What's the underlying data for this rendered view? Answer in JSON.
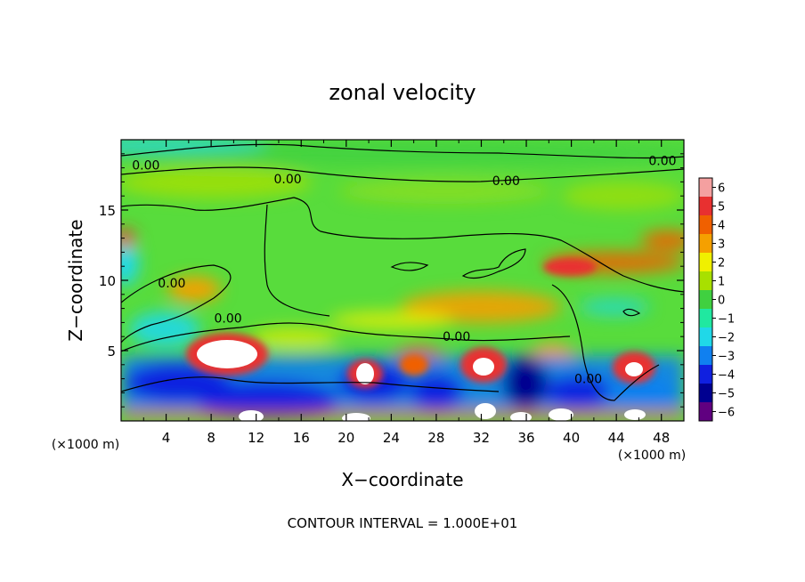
{
  "chart_data": {
    "type": "heatmap",
    "title": "zonal velocity",
    "xlabel": "X−coordinate",
    "ylabel": "Z−coordinate",
    "x_unit_left": "(×1000 m)",
    "x_unit_right": "(×1000 m)",
    "footer": "CONTOUR INTERVAL = 1.000E+01",
    "xlim": [
      0,
      50
    ],
    "ylim": [
      0,
      20
    ],
    "x_ticks": [
      4,
      8,
      12,
      16,
      20,
      24,
      28,
      32,
      36,
      40,
      44,
      48
    ],
    "x_tick_labels": [
      "4",
      "8",
      "12",
      "16",
      "20",
      "24",
      "28",
      "32",
      "36",
      "40",
      "44",
      "48"
    ],
    "y_ticks": [
      5,
      10,
      15
    ],
    "y_tick_labels": [
      "5",
      "10",
      "15"
    ],
    "colorbar": {
      "values": [
        6,
        5,
        4,
        3,
        2,
        1,
        0,
        -1,
        -2,
        -3,
        -4,
        -5,
        -6
      ],
      "labels": [
        "6",
        "5",
        "4",
        "3",
        "2",
        "1",
        "0",
        "−1",
        "−2",
        "−3",
        "−4",
        "−5",
        "−6"
      ],
      "colors": [
        "#f4a0a0",
        "#e83030",
        "#f06000",
        "#f5a000",
        "#f0f000",
        "#a8e000",
        "#40d040",
        "#20e8a0",
        "#20d8e8",
        "#1080f0",
        "#1020e0",
        "#000090",
        "#600080"
      ]
    },
    "contour_labels": [
      {
        "text": "0.00",
        "x": 2.2,
        "z": 18.2
      },
      {
        "text": "0.00",
        "x": 14.8,
        "z": 17.2
      },
      {
        "text": "0.00",
        "x": 34.2,
        "z": 17.1
      },
      {
        "text": "0.00",
        "x": 48.1,
        "z": 18.5
      },
      {
        "text": "0.00",
        "x": 4.5,
        "z": 9.8
      },
      {
        "text": "0.00",
        "x": 9.5,
        "z": 7.3
      },
      {
        "text": "0.00",
        "x": 29.8,
        "z": 6.0
      },
      {
        "text": "0.00",
        "x": 41.5,
        "z": 3.0
      }
    ]
  }
}
